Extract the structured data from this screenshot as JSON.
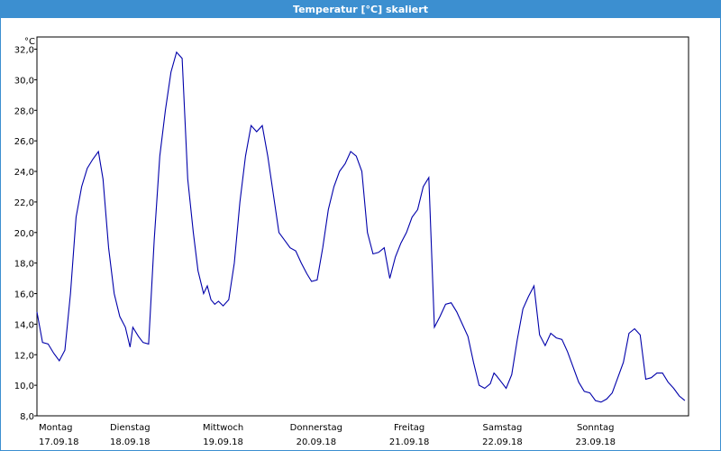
{
  "window": {
    "title": "Temperatur [°C] skaliert"
  },
  "chart_data": {
    "type": "line",
    "title": "Temperatur [°C] skaliert",
    "ylabel": "°C",
    "ylim": [
      8.0,
      32.8
    ],
    "xlim": [
      0,
      7
    ],
    "grid": true,
    "yticks": [
      "8,0",
      "10,0",
      "12,0",
      "14,0",
      "16,0",
      "18,0",
      "20,0",
      "22,0",
      "24,0",
      "26,0",
      "28,0",
      "30,0",
      "32,0"
    ],
    "xticks": [
      {
        "day": "Montag",
        "date": "17.09.18"
      },
      {
        "day": "Dienstag",
        "date": "18.09.18"
      },
      {
        "day": "Mittwoch",
        "date": "19.09.18"
      },
      {
        "day": "Donnerstag",
        "date": "20.09.18"
      },
      {
        "day": "Freitag",
        "date": "21.09.18"
      },
      {
        "day": "Samstag",
        "date": "22.09.18"
      },
      {
        "day": "Sonntag",
        "date": "23.09.18"
      }
    ],
    "line_color": "#0000aa",
    "series": [
      {
        "x": [
          0.0,
          0.06,
          0.12,
          0.18,
          0.24,
          0.3,
          0.36,
          0.42,
          0.48,
          0.54,
          0.6,
          0.66,
          0.71,
          0.77,
          0.83,
          0.89,
          0.95,
          1.0,
          1.03,
          1.09,
          1.14,
          1.2,
          1.26,
          1.32,
          1.38,
          1.44,
          1.5,
          1.56,
          1.62,
          1.68,
          1.73,
          1.79,
          1.83,
          1.87,
          1.91,
          1.95,
          2.0,
          2.06,
          2.12,
          2.18,
          2.24,
          2.3,
          2.36,
          2.42,
          2.48,
          2.54,
          2.6,
          2.66,
          2.72,
          2.78,
          2.84,
          2.9,
          2.95,
          3.01,
          3.07,
          3.13,
          3.19,
          3.25,
          3.31,
          3.37,
          3.43,
          3.49,
          3.55,
          3.61,
          3.67,
          3.73,
          3.79,
          3.85,
          3.91,
          3.97,
          4.03,
          4.09,
          4.15,
          4.21,
          4.27,
          4.33,
          4.39,
          4.45,
          4.51,
          4.57,
          4.63,
          4.69,
          4.75,
          4.81,
          4.87,
          4.91,
          4.94,
          4.99,
          5.04,
          5.1,
          5.16,
          5.22,
          5.28,
          5.34,
          5.4,
          5.46,
          5.52,
          5.58,
          5.64,
          5.7,
          5.76,
          5.82,
          5.88,
          5.94,
          6.0,
          6.06,
          6.12,
          6.18,
          6.24,
          6.3,
          6.36,
          6.42,
          6.48,
          6.54,
          6.6,
          6.66,
          6.72,
          6.78,
          6.84,
          6.9,
          6.96
        ],
        "y": [
          14.8,
          12.8,
          12.7,
          12.1,
          11.6,
          12.3,
          16.0,
          21.0,
          23.0,
          24.2,
          24.8,
          25.3,
          23.5,
          19.0,
          16.0,
          14.5,
          13.8,
          12.5,
          13.8,
          13.2,
          12.8,
          12.7,
          19.5,
          25.0,
          28.0,
          30.5,
          31.8,
          31.4,
          23.5,
          20.0,
          17.5,
          16.0,
          16.5,
          15.6,
          15.3,
          15.5,
          15.2,
          15.6,
          18.0,
          22.0,
          25.0,
          27.0,
          26.6,
          27.0,
          25.0,
          22.5,
          20.0,
          19.5,
          19.0,
          18.8,
          18.0,
          17.3,
          16.8,
          16.9,
          19.0,
          21.5,
          23.0,
          24.0,
          24.5,
          25.3,
          25.0,
          24.0,
          20.0,
          18.6,
          18.7,
          19.0,
          17.0,
          18.4,
          19.3,
          20.0,
          21.0,
          21.5,
          23.0,
          23.6,
          13.8,
          14.5,
          15.3,
          15.4,
          14.8,
          14.0,
          13.2,
          11.5,
          10.0,
          9.8,
          10.1,
          10.8,
          10.6,
          10.2,
          9.8,
          10.7,
          13.0,
          15.0,
          15.8,
          16.5,
          13.3,
          12.6,
          13.4,
          13.1,
          13.0,
          12.2,
          11.2,
          10.2,
          9.6,
          9.5,
          9.0,
          8.9,
          9.1,
          9.5,
          10.5,
          11.5,
          13.4,
          13.7,
          13.3,
          10.4,
          10.5,
          10.8,
          10.8,
          10.2,
          9.8,
          9.3,
          9.0
        ]
      }
    ]
  }
}
